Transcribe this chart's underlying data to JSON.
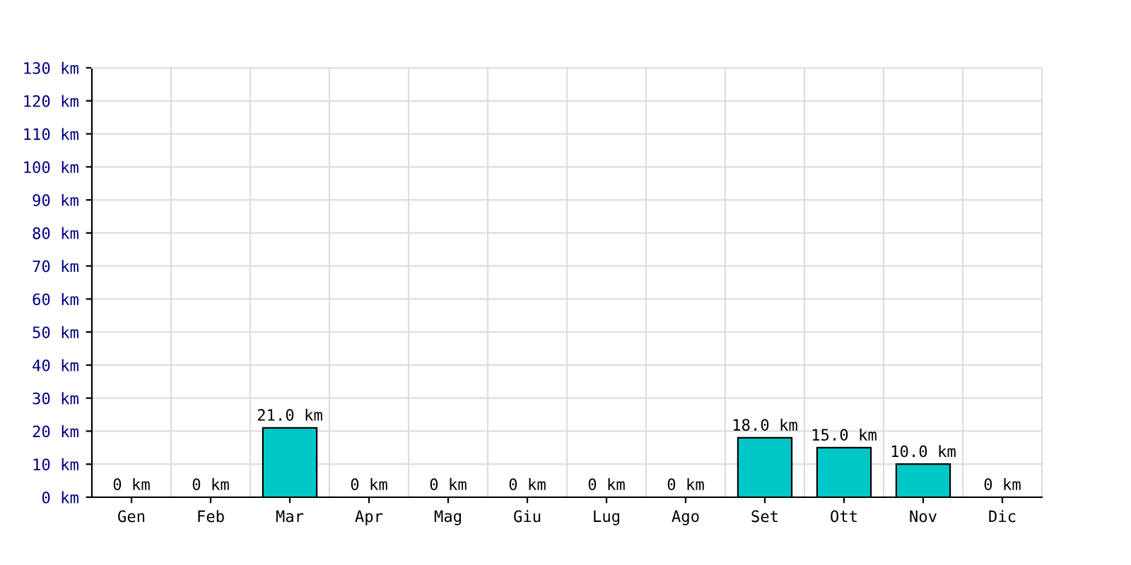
{
  "chart_data": {
    "type": "bar",
    "categories": [
      "Gen",
      "Feb",
      "Mar",
      "Apr",
      "Mag",
      "Giu",
      "Lug",
      "Ago",
      "Set",
      "Ott",
      "Nov",
      "Dic"
    ],
    "values": [
      0,
      0,
      21,
      0,
      0,
      0,
      0,
      0,
      18,
      15,
      10,
      0
    ],
    "value_labels": [
      "0 km",
      "0 km",
      "21.0 km",
      "0 km",
      "0 km",
      "0 km",
      "0 km",
      "0 km",
      "18.0 km",
      "15.0 km",
      "10.0 km",
      "0 km"
    ],
    "color": "#00c8c8",
    "ylim": [
      0,
      130
    ],
    "yticks": [
      {
        "value": 0,
        "label": "0 km"
      },
      {
        "value": 10,
        "label": "10 km"
      },
      {
        "value": 20,
        "label": "20 km"
      },
      {
        "value": 30,
        "label": "30 km"
      },
      {
        "value": 40,
        "label": "40 km"
      },
      {
        "value": 50,
        "label": "50 km"
      },
      {
        "value": 60,
        "label": "60 km"
      },
      {
        "value": 70,
        "label": "70 km"
      },
      {
        "value": 80,
        "label": "80 km"
      },
      {
        "value": 90,
        "label": "90 km"
      },
      {
        "value": 100,
        "label": "100 km"
      },
      {
        "value": 110,
        "label": "110 km"
      },
      {
        "value": 120,
        "label": "120 km"
      },
      {
        "value": 130,
        "label": "130 km"
      }
    ],
    "grid": true
  }
}
